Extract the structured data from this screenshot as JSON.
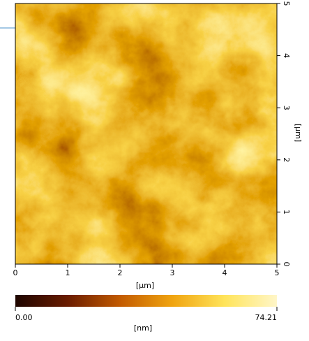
{
  "chart_data": {
    "type": "heatmap",
    "xlabel": "[μm]",
    "ylabel": "[μm]",
    "xlim": [
      0,
      5
    ],
    "xticks": [
      0,
      1,
      2,
      3,
      4,
      5
    ],
    "ylim": [
      0,
      5
    ],
    "yticks": [
      0,
      1,
      2,
      3,
      4,
      5
    ],
    "colormap": [
      "#1e0500",
      "#6a1c00",
      "#c25a00",
      "#f0a410",
      "#ffe45a",
      "#fff6c8"
    ],
    "colorbar": {
      "lim": [
        0,
        74.21
      ],
      "ticks": [
        {
          "value": 0,
          "label": "0.00"
        },
        74.21
      ],
      "label": "[nm]"
    }
  }
}
